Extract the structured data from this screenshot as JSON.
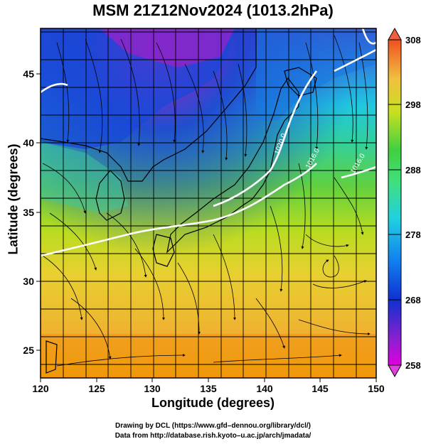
{
  "title": "MSM 21Z12Nov2024 (1013.2hPa)",
  "axes": {
    "xlabel": "Longitude (degrees)",
    "ylabel": "Latitude  (degrees)",
    "xticks": [
      "120",
      "125",
      "130",
      "135",
      "140",
      "145",
      "150"
    ],
    "yticks": [
      "25",
      "30",
      "35",
      "40",
      "45"
    ]
  },
  "colorbar": {
    "ticks": [
      "308",
      "298",
      "288",
      "278",
      "268",
      "258"
    ]
  },
  "contour_labels": [
    "1016.0",
    "1020.0",
    "1016.0"
  ],
  "credits": {
    "line1": "Drawing by DCL (https://www.gfd–dennou.org/library/dcl/)",
    "line2": "Data from http://database.rish.kyoto–u.ac.jp/arch/jmadata/"
  },
  "chart_data": {
    "type": "heatmap",
    "title": "MSM 21Z12Nov2024 (1013.2hPa)",
    "xlabel": "Longitude (degrees)",
    "ylabel": "Latitude  (degrees)",
    "xlim": [
      120,
      150
    ],
    "ylim": [
      22.4,
      47.6
    ],
    "xticks": [
      120,
      125,
      130,
      135,
      140,
      145,
      150
    ],
    "yticks": [
      25,
      30,
      35,
      40,
      45
    ],
    "colorbar_range": [
      258,
      308
    ],
    "colorbar_ticks": [
      308,
      298,
      288,
      278,
      268,
      258
    ],
    "grid": true,
    "isobars": [
      1016.0,
      1020.0,
      1016.0
    ]
  }
}
